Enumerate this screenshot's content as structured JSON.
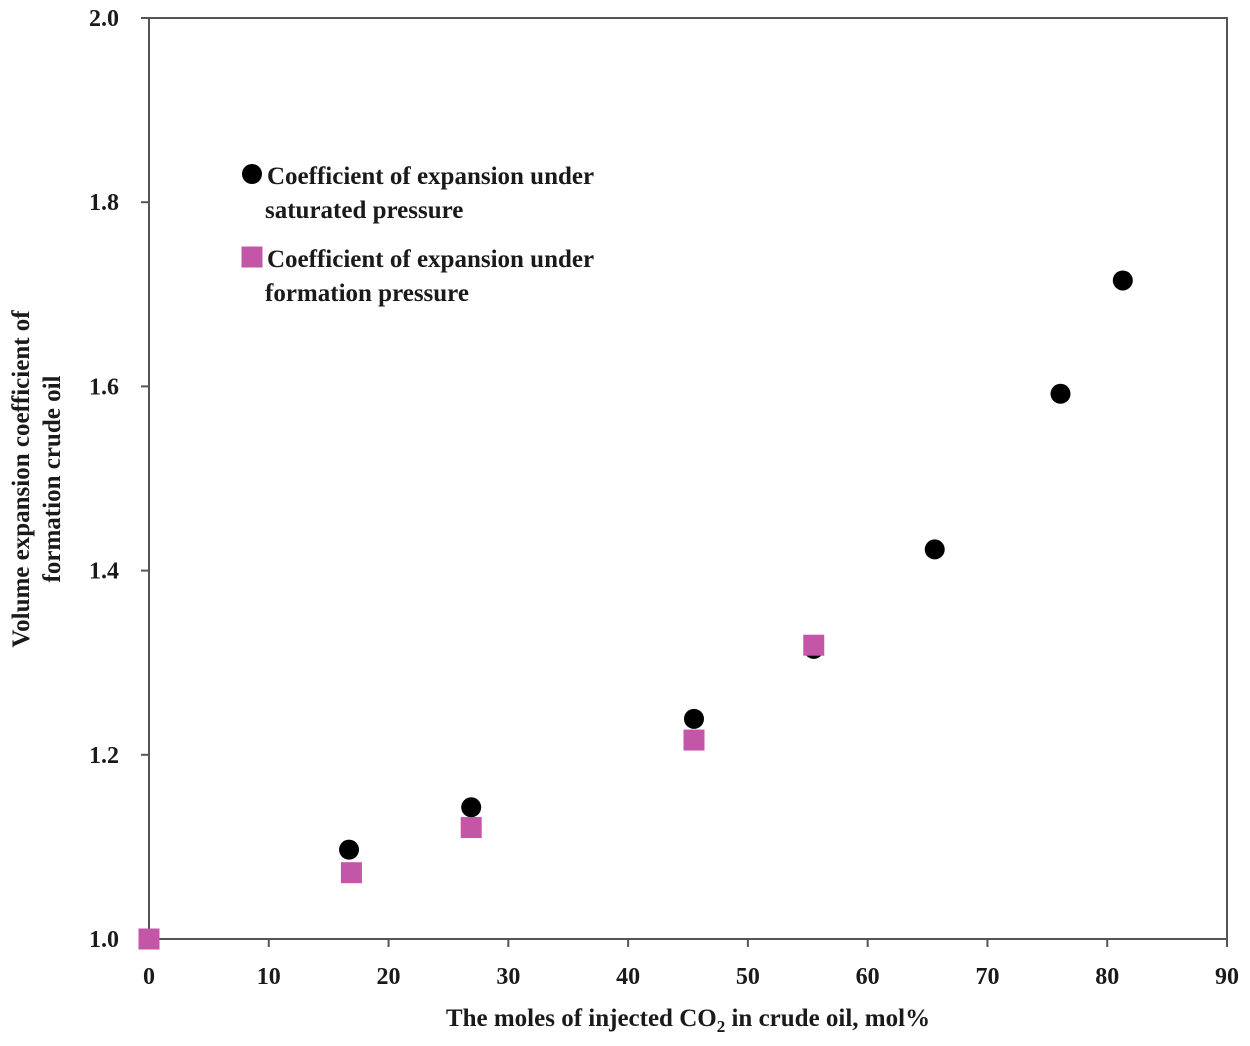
{
  "chart_data": {
    "type": "scatter",
    "title": "",
    "xlabel": {
      "main": "The moles of injected CO",
      "subscript": "2",
      "rest": " in crude oil, mol%"
    },
    "ylabel": {
      "line1": "Volume expansion coefficient of",
      "line2": "formation crude oil"
    },
    "xlim": [
      0,
      90
    ],
    "ylim": [
      1.0,
      2.0
    ],
    "xticks": [
      0,
      10,
      20,
      30,
      40,
      50,
      60,
      70,
      80,
      90
    ],
    "yticks": [
      1.0,
      1.2,
      1.4,
      1.6,
      1.8,
      2.0
    ],
    "xtick_labels": [
      "0",
      "10",
      "20",
      "30",
      "40",
      "50",
      "60",
      "70",
      "80",
      "90"
    ],
    "ytick_labels": [
      "1.0",
      "1.2",
      "1.4",
      "1.6",
      "1.8",
      "2.0"
    ],
    "grid": false,
    "legend_position": "top-left",
    "series": [
      {
        "name": "saturated",
        "legend": [
          "Coefficient of expansion under",
          "saturated pressure"
        ],
        "marker": "circle",
        "color": "#000000",
        "x": [
          0,
          16.7,
          26.9,
          45.5,
          55.5,
          65.6,
          76.1,
          81.3
        ],
        "y": [
          1.0,
          1.097,
          1.143,
          1.239,
          1.315,
          1.423,
          1.592,
          1.715
        ]
      },
      {
        "name": "formation",
        "legend": [
          "Coefficient of expansion under",
          "formation pressure"
        ],
        "marker": "square",
        "color": "#c456a8",
        "x": [
          0,
          16.9,
          26.9,
          45.5,
          55.5
        ],
        "y": [
          1.0,
          1.072,
          1.121,
          1.216,
          1.319
        ]
      }
    ]
  }
}
